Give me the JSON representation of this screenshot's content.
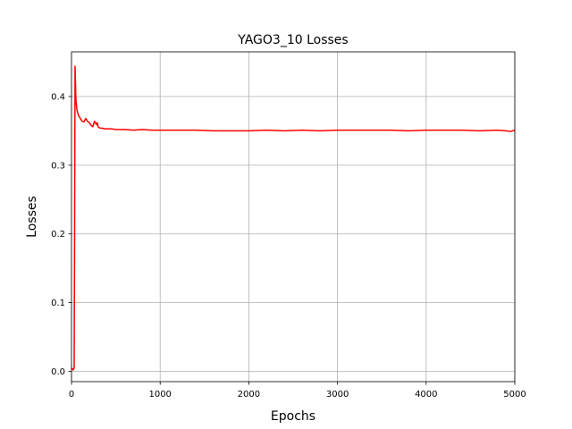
{
  "chart_data": {
    "type": "line",
    "title": "YAGO3_10 Losses",
    "xlabel": "Epochs",
    "ylabel": "Losses",
    "xlim": [
      0,
      5000
    ],
    "ylim": [
      -0.015,
      0.465
    ],
    "xticks": [
      0,
      1000,
      2000,
      3000,
      4000,
      5000
    ],
    "yticks": [
      0.0,
      0.1,
      0.2,
      0.3,
      0.4
    ],
    "xtick_labels": [
      "0",
      "1000",
      "2000",
      "3000",
      "4000",
      "5000"
    ],
    "ytick_labels": [
      "0.0",
      "0.1",
      "0.2",
      "0.3",
      "0.4"
    ],
    "grid": true,
    "series": [
      {
        "color": "#ff0000",
        "x": [
          0,
          20,
          30,
          35,
          40,
          45,
          50,
          60,
          70,
          80,
          100,
          120,
          140,
          160,
          180,
          200,
          220,
          240,
          260,
          270,
          280,
          290,
          300,
          320,
          340,
          380,
          450,
          500,
          600,
          700,
          800,
          900,
          1000,
          1200,
          1400,
          1600,
          1800,
          2000,
          2200,
          2400,
          2600,
          2800,
          3000,
          3200,
          3400,
          3600,
          3800,
          4000,
          4200,
          4400,
          4600,
          4800,
          4900,
          4950,
          5000
        ],
        "y": [
          0.005,
          0.002,
          0.005,
          0.2,
          0.444,
          0.42,
          0.395,
          0.382,
          0.376,
          0.372,
          0.368,
          0.364,
          0.363,
          0.368,
          0.364,
          0.362,
          0.358,
          0.356,
          0.364,
          0.362,
          0.359,
          0.362,
          0.356,
          0.354,
          0.354,
          0.353,
          0.353,
          0.352,
          0.352,
          0.351,
          0.352,
          0.351,
          0.351,
          0.351,
          0.351,
          0.35,
          0.35,
          0.35,
          0.351,
          0.35,
          0.351,
          0.35,
          0.351,
          0.351,
          0.351,
          0.351,
          0.35,
          0.351,
          0.351,
          0.351,
          0.35,
          0.351,
          0.35,
          0.349,
          0.351
        ]
      }
    ]
  }
}
